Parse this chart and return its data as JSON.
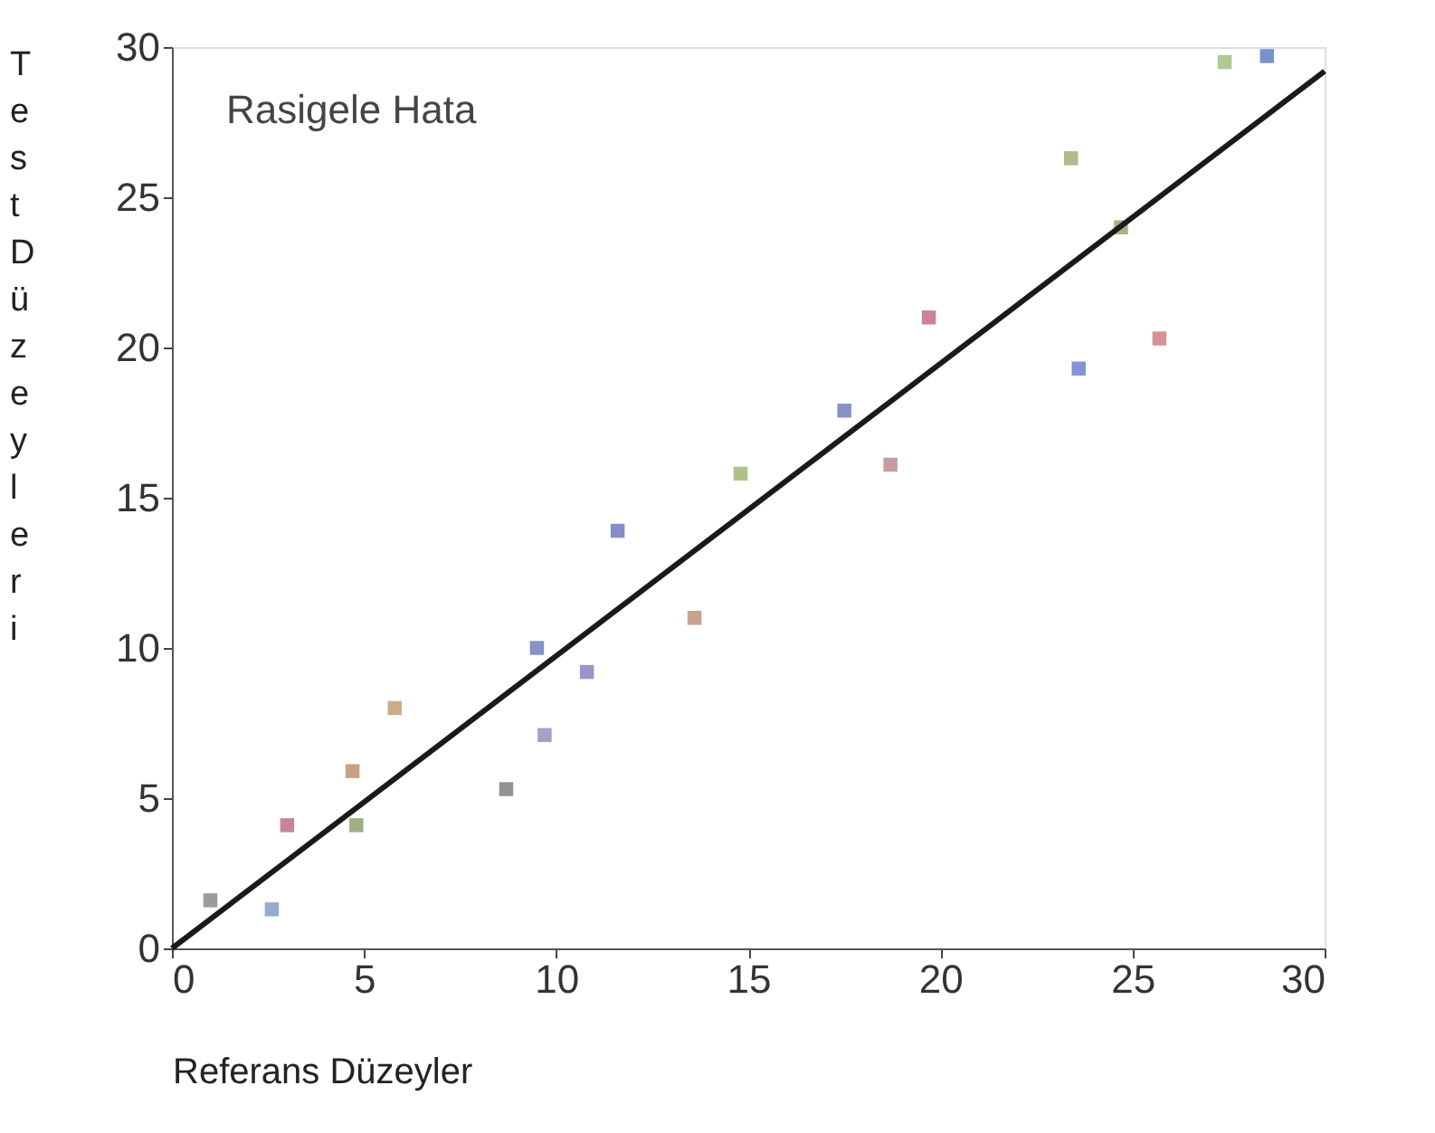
{
  "chart_data": {
    "type": "scatter",
    "xlabel": "Referans Düzeyler",
    "ylabel": "Test Düzeyleri",
    "annotations": [
      "Rasigele Hata"
    ],
    "xlim": [
      0,
      30
    ],
    "ylim": [
      0,
      30
    ],
    "xticks": [
      0,
      5,
      10,
      15,
      20,
      25,
      30
    ],
    "yticks": [
      0,
      5,
      10,
      15,
      20,
      25,
      30
    ],
    "grid": false,
    "marker": "square",
    "series": [
      {
        "x": [
          1,
          2.6,
          3,
          4.7,
          4.8,
          5.8,
          8.7,
          9.7,
          9.5,
          10.8,
          11.6,
          13.6,
          14.8,
          17.5,
          18.7,
          19.7,
          23.6,
          25.7,
          23.4,
          24.7,
          27.4,
          28.5
        ],
        "values": [
          1.6,
          1.3,
          4.1,
          5.9,
          4.1,
          8,
          5.3,
          7.1,
          10,
          9.2,
          13.9,
          11,
          15.8,
          17.9,
          16.1,
          21,
          19.3,
          20.3,
          26.3,
          24,
          29.5,
          29.7
        ],
        "colors": [
          "#8a8a8a",
          "#8a9ac8",
          "#c07080",
          "#c09070",
          "#90a070",
          "#c0a070",
          "#808080",
          "#9090c0",
          "#7080c0",
          "#9080c0",
          "#7078c0",
          "#c09080",
          "#a0b870",
          "#7080c0",
          "#c08890",
          "#c07080",
          "#7080d0",
          "#d08080",
          "#a0b070",
          "#a0a070",
          "#a0c080",
          "#6080c0"
        ]
      },
      {
        "type": "line",
        "x": [
          0,
          30
        ],
        "values": [
          0,
          29.2
        ],
        "color": "#1a1a1a",
        "line_style": "solid",
        "marker": "none"
      }
    ]
  }
}
